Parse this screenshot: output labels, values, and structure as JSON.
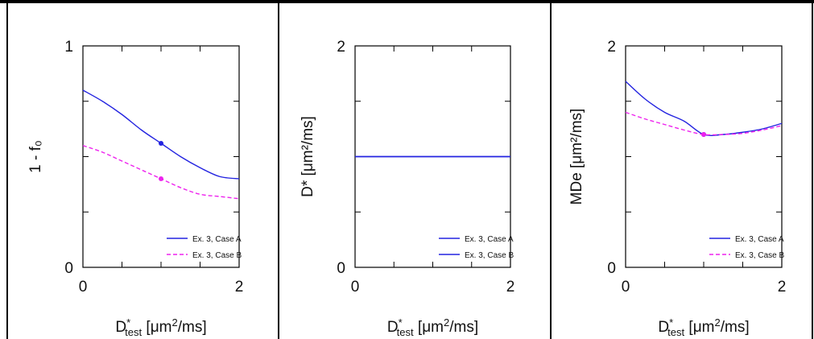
{
  "colors": {
    "series_a": "#2323e0",
    "series_b": "#ee22ee",
    "frame": "#000000"
  },
  "chart_data": [
    {
      "type": "line",
      "ylabel": "1 - f₀",
      "xlabel_main": "D",
      "xlabel_sup": "*",
      "xlabel_sub": "test",
      "xlabel_unit_pre": "[μm",
      "xlabel_unit_sup": "2",
      "xlabel_unit_post": "/ms]",
      "xlim": [
        0,
        2
      ],
      "ylim": [
        0,
        1
      ],
      "x_tick_labels": [
        "0",
        "2"
      ],
      "y_tick_labels": [
        "0",
        "1"
      ],
      "x_ticks": [
        0,
        0.5,
        1,
        1.5,
        2
      ],
      "y_ticks": [
        0,
        0.25,
        0.5,
        0.75,
        1
      ],
      "legend_position": "lower-right",
      "series": [
        {
          "name": "Ex. 3, Case A",
          "style": "solid",
          "x": [
            0,
            0.25,
            0.5,
            0.75,
            1.0,
            1.25,
            1.5,
            1.75,
            2.0
          ],
          "y": [
            0.8,
            0.75,
            0.69,
            0.62,
            0.56,
            0.5,
            0.45,
            0.41,
            0.4
          ],
          "marker": {
            "x": 1.0,
            "y": 0.56
          }
        },
        {
          "name": "Ex. 3, Case B",
          "style": "dashed",
          "x": [
            0,
            0.25,
            0.5,
            0.75,
            1.0,
            1.25,
            1.5,
            1.75,
            2.0
          ],
          "y": [
            0.55,
            0.52,
            0.48,
            0.44,
            0.4,
            0.36,
            0.33,
            0.32,
            0.31
          ],
          "marker": {
            "x": 1.0,
            "y": 0.4
          }
        }
      ]
    },
    {
      "type": "line",
      "ylabel": "D* [μm²/ms]",
      "xlabel_main": "D",
      "xlabel_sup": "*",
      "xlabel_sub": "test",
      "xlabel_unit_pre": "[μm",
      "xlabel_unit_sup": "2",
      "xlabel_unit_post": "/ms]",
      "xlim": [
        0,
        2
      ],
      "ylim": [
        0,
        2
      ],
      "x_tick_labels": [
        "0",
        "2"
      ],
      "y_tick_labels": [
        "0",
        "2"
      ],
      "x_ticks": [
        0,
        0.5,
        1,
        1.5,
        2
      ],
      "y_ticks": [
        0,
        0.5,
        1,
        1.5,
        2
      ],
      "legend_position": "lower-right",
      "series": [
        {
          "name": "Ex. 3, Case A",
          "style": "solid",
          "color_key": "series_a",
          "x": [
            0,
            2
          ],
          "y": [
            1.0,
            1.0
          ]
        },
        {
          "name": "Ex. 3, Case B",
          "style": "solid",
          "color_key": "series_a",
          "x": [
            0,
            2
          ],
          "y": [
            1.0,
            1.0
          ]
        }
      ]
    },
    {
      "type": "line",
      "ylabel": "MDe [μm²/ms]",
      "xlabel_main": "D",
      "xlabel_sup": "*",
      "xlabel_sub": "test",
      "xlabel_unit_pre": "[μm",
      "xlabel_unit_sup": "2",
      "xlabel_unit_post": "/ms]",
      "xlim": [
        0,
        2
      ],
      "ylim": [
        0,
        2
      ],
      "x_tick_labels": [
        "0",
        "2"
      ],
      "y_tick_labels": [
        "0",
        "2"
      ],
      "x_ticks": [
        0,
        0.5,
        1,
        1.5,
        2
      ],
      "y_ticks": [
        0,
        0.5,
        1,
        1.5,
        2
      ],
      "legend_position": "lower-right",
      "series": [
        {
          "name": "Ex. 3, Case A",
          "style": "solid",
          "x": [
            0,
            0.25,
            0.5,
            0.75,
            1.0,
            1.25,
            1.5,
            1.75,
            2.0
          ],
          "y": [
            1.68,
            1.52,
            1.4,
            1.32,
            1.2,
            1.2,
            1.22,
            1.25,
            1.3
          ],
          "marker": {
            "x": 1.0,
            "y": 1.2
          }
        },
        {
          "name": "Ex. 3, Case B",
          "style": "dashed",
          "x": [
            0,
            0.25,
            0.5,
            0.75,
            1.0,
            1.25,
            1.5,
            1.75,
            2.0
          ],
          "y": [
            1.4,
            1.34,
            1.29,
            1.24,
            1.2,
            1.2,
            1.21,
            1.24,
            1.28
          ],
          "marker": {
            "x": 1.0,
            "y": 1.2
          }
        }
      ]
    }
  ]
}
